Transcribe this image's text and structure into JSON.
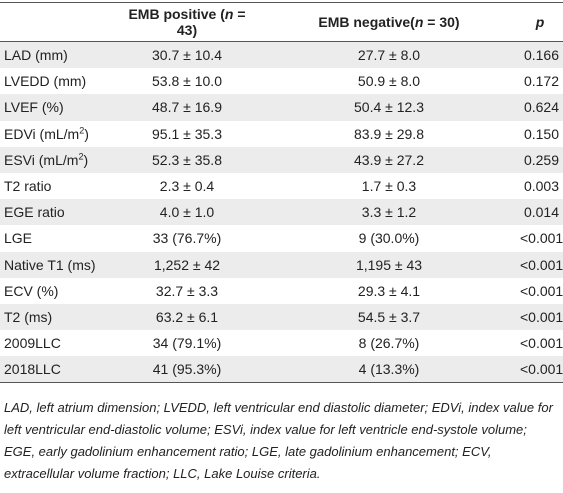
{
  "table": {
    "header": [
      [
        {
          "text": ""
        }
      ],
      [
        {
          "text": "EMB positive ("
        },
        {
          "text": "n",
          "style": "italic"
        },
        {
          "text": " = 43)"
        }
      ],
      [
        {
          "text": "EMB negative("
        },
        {
          "text": "n",
          "style": "italic"
        },
        {
          "text": " = 30)"
        }
      ],
      [
        {
          "text": "p",
          "style": "italic"
        }
      ]
    ],
    "rows": [
      [
        [
          {
            "text": "LAD (mm)"
          }
        ],
        "30.7 ± 10.4",
        "27.7 ± 8.0",
        "0.166"
      ],
      [
        [
          {
            "text": "LVEDD (mm)"
          }
        ],
        "53.8 ± 10.0",
        "50.9 ± 8.0",
        "0.172"
      ],
      [
        [
          {
            "text": "LVEF (%)"
          }
        ],
        "48.7 ± 16.9",
        "50.4 ± 12.3",
        "0.624"
      ],
      [
        [
          {
            "text": "EDVi (mL/m"
          },
          {
            "text": "2",
            "style": "sup"
          },
          {
            "text": ")"
          }
        ],
        "95.1 ± 35.3",
        "83.9 ± 29.8",
        "0.150"
      ],
      [
        [
          {
            "text": "ESVi (mL/m"
          },
          {
            "text": "2",
            "style": "sup"
          },
          {
            "text": ")"
          }
        ],
        "52.3 ± 35.8",
        "43.9 ± 27.2",
        "0.259"
      ],
      [
        [
          {
            "text": "T2 ratio"
          }
        ],
        "2.3 ± 0.4",
        "1.7 ± 0.3",
        "0.003"
      ],
      [
        [
          {
            "text": "EGE ratio"
          }
        ],
        "4.0 ± 1.0",
        "3.3 ± 1.2",
        "0.014"
      ],
      [
        [
          {
            "text": "LGE"
          }
        ],
        "33 (76.7%)",
        "9 (30.0%)",
        "<0.001"
      ],
      [
        [
          {
            "text": "Native T1 (ms)"
          }
        ],
        "1,252 ± 42",
        "1,195 ± 43",
        "<0.001"
      ],
      [
        [
          {
            "text": "ECV (%)"
          }
        ],
        "32.7 ± 3.3",
        "29.3 ± 4.1",
        "<0.001"
      ],
      [
        [
          {
            "text": "T2 (ms)"
          }
        ],
        "63.2 ± 6.1",
        "54.5 ± 3.7",
        "<0.001"
      ],
      [
        [
          {
            "text": "2009LLC"
          }
        ],
        "34 (79.1%)",
        "8 (26.7%)",
        "<0.001"
      ],
      [
        [
          {
            "text": "2018LLC"
          }
        ],
        "41 (95.3%)",
        "4 (13.3%)",
        "<0.001"
      ]
    ],
    "footnote": "LAD, left atrium dimension; LVEDD, left ventricular end diastolic diameter; EDVi, index value for left ventricular end-diastolic volume; ESVi, index value for left ventricle end-systole volume; EGE, early gadolinium enhancement ratio; LGE, late gadolinium enhancement; ECV, extracellular volume fraction; LLC, Lake Louise criteria."
  }
}
